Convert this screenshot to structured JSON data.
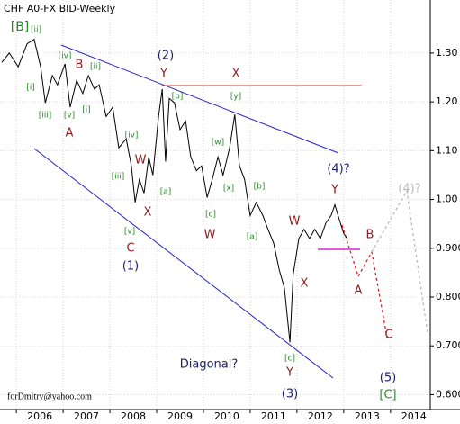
{
  "chart_data": {
    "type": "line",
    "title": "CHF A0-FX BID-Weekly",
    "credit": "forDmitry@yahoo.com",
    "color": "#000000",
    "x": [
      2005.69,
      2005.85,
      2006.04,
      2006.23,
      2006.38,
      2006.52,
      2006.62,
      2006.77,
      2006.88,
      2007.04,
      2007.15,
      2007.29,
      2007.42,
      2007.54,
      2007.67,
      2007.77,
      2007.92,
      2008.06,
      2008.19,
      2008.35,
      2008.46,
      2008.54,
      2008.63,
      2008.73,
      2008.83,
      2008.92,
      2009.04,
      2009.12,
      2009.19,
      2009.27,
      2009.38,
      2009.5,
      2009.62,
      2009.73,
      2009.85,
      2009.96,
      2010.08,
      2010.19,
      2010.31,
      2010.42,
      2010.56,
      2010.67,
      2010.77,
      2010.88,
      2011.0,
      2011.13,
      2011.27,
      2011.38,
      2011.5,
      2011.62,
      2011.73,
      2011.85,
      2011.92,
      2012.04,
      2012.15,
      2012.27,
      2012.38,
      2012.5,
      2012.62,
      2012.73,
      2012.81,
      2012.88,
      2013.0,
      2013.08
    ],
    "values": [
      1.281,
      1.3,
      1.272,
      1.319,
      1.328,
      1.272,
      1.198,
      1.254,
      1.235,
      1.278,
      1.189,
      1.244,
      1.217,
      1.254,
      1.226,
      1.235,
      1.17,
      1.189,
      1.106,
      1.124,
      1.069,
      0.994,
      1.041,
      1.013,
      1.087,
      1.05,
      1.17,
      1.226,
      1.078,
      1.207,
      1.198,
      1.143,
      1.161,
      1.087,
      1.059,
      1.069,
      1.004,
      1.041,
      1.087,
      1.05,
      1.106,
      1.174,
      1.069,
      1.041,
      0.967,
      0.994,
      0.967,
      0.939,
      0.911,
      0.856,
      0.819,
      0.707,
      0.846,
      0.92,
      0.939,
      0.92,
      0.939,
      0.92,
      0.952,
      0.967,
      0.989,
      0.967,
      0.93,
      0.92
    ],
    "xlim": [
      2005.69,
      2014.85
    ],
    "xticks": [
      2006,
      2007,
      2008,
      2009,
      2010,
      2011,
      2012,
      2013,
      2014
    ],
    "ylim": [
      0.575,
      1.405
    ],
    "yticks": [
      {
        "value": 0.6,
        "label": "0.600"
      },
      {
        "value": 0.7,
        "label": "0.700"
      },
      {
        "value": 0.8,
        "label": "0.800"
      },
      {
        "value": 0.9,
        "label": "0.900"
      },
      {
        "value": 1.0,
        "label": "1.00"
      },
      {
        "value": 1.1,
        "label": "1.10"
      },
      {
        "value": 1.2,
        "label": "1.20"
      },
      {
        "value": 1.3,
        "label": "1.30"
      }
    ],
    "grid": true,
    "annotations": [
      "[B]",
      "[ii]",
      "[i]",
      "[iii]",
      "[iv]",
      "[v]",
      "B",
      "A",
      "[ii]",
      "[i]",
      "[iv]",
      "[iii]",
      "[v]",
      "W",
      "X",
      "C",
      "(1)",
      "(2)",
      "Y",
      "[a]",
      "[b]",
      "X",
      "[y]",
      "[w]",
      "[x]",
      "[c]",
      "W",
      "[b]",
      "[a]",
      "W",
      "X",
      "[c]",
      "Y",
      "(3)",
      "Diagonal?",
      "(4)?",
      "Y",
      "B",
      "A",
      "C",
      "(5)",
      "[C]",
      "(4)?"
    ]
  }
}
